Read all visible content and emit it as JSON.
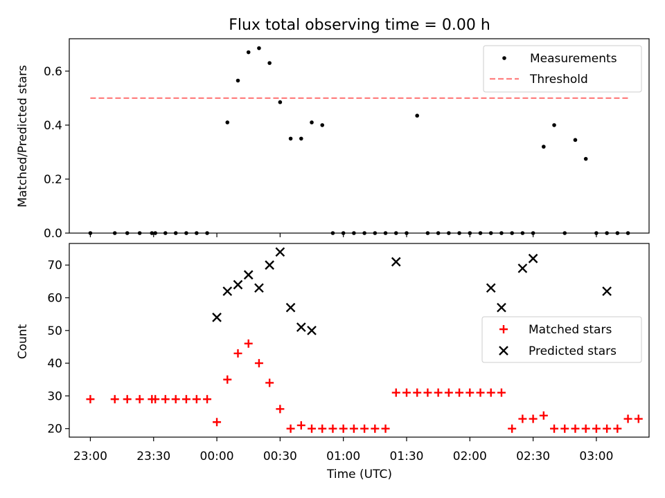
{
  "chart_data": [
    {
      "type": "scatter",
      "title": "Flux total observing time = 0.00 h",
      "xlabel": "",
      "ylabel": "Matched/Predicted stars",
      "ylim": [
        0,
        0.72
      ],
      "yticks": [
        "0.0",
        "0.2",
        "0.4",
        "0.6"
      ],
      "xlim_minutes": [
        -10,
        265
      ],
      "threshold": {
        "name": "Threshold",
        "value": 0.5,
        "x_range_minutes": [
          0,
          255
        ],
        "color": "#ff7f7f"
      },
      "series": [
        {
          "name": "Measurements",
          "color": "#000000",
          "x_minutes": [
            0,
            11.6,
            17.5,
            23.4,
            29.2,
            30.8,
            35.6,
            40.5,
            45.5,
            50.4,
            55.4,
            65,
            70,
            75,
            80,
            85,
            90,
            95,
            100,
            105,
            110,
            115,
            120,
            125,
            130,
            135,
            140,
            145,
            150,
            155,
            160,
            165,
            170,
            175,
            180,
            185,
            190,
            195,
            200,
            205,
            210,
            215,
            220,
            225,
            230,
            235,
            240,
            245,
            250,
            255
          ],
          "values": [
            0,
            0,
            0,
            0,
            0,
            0,
            0,
            0,
            0,
            0,
            0,
            0.41,
            0.565,
            0.67,
            0.685,
            0.63,
            0.485,
            0.35,
            0.35,
            0.41,
            0.4,
            0,
            0,
            0,
            0,
            0,
            0,
            0,
            0,
            0.435,
            0,
            0,
            0,
            0,
            0,
            0,
            0,
            0,
            0,
            0,
            0,
            0.32,
            0.4,
            0,
            0.345,
            0.275,
            0,
            0,
            0,
            0
          ]
        }
      ]
    },
    {
      "type": "scatter",
      "title": "",
      "xlabel": "Time (UTC)",
      "ylabel": "Count",
      "ylim": [
        17.4,
        76.6
      ],
      "yticks": [
        "20",
        "30",
        "40",
        "50",
        "60",
        "70"
      ],
      "xticks": [
        "23:00",
        "23:30",
        "00:00",
        "00:30",
        "01:00",
        "01:30",
        "02:00",
        "02:30",
        "03:00"
      ],
      "series": [
        {
          "name": "Matched stars",
          "color": "#ff0000",
          "marker": "+",
          "x_minutes": [
            0,
            11.6,
            17.5,
            23.4,
            29.2,
            30.8,
            35.6,
            40.5,
            45.5,
            50.4,
            55.4,
            60,
            65,
            70,
            75,
            80,
            85,
            90,
            95,
            100,
            105,
            110,
            115,
            120,
            125,
            130,
            135,
            140,
            145,
            150,
            155,
            160,
            165,
            170,
            175,
            180,
            185,
            190,
            195,
            200,
            205,
            210,
            215,
            220,
            225,
            230,
            235,
            240,
            245,
            250,
            255,
            260
          ],
          "values": [
            29,
            29,
            29,
            29,
            29,
            29,
            29,
            29,
            29,
            29,
            29,
            22,
            35,
            43,
            46,
            40,
            34,
            26,
            20,
            21,
            20,
            20,
            20,
            20,
            20,
            20,
            20,
            20,
            31,
            31,
            31,
            31,
            31,
            31,
            31,
            31,
            31,
            31,
            31,
            20,
            23,
            23,
            24,
            20,
            20,
            20,
            20,
            20,
            20,
            20,
            23,
            23
          ]
        },
        {
          "name": "Predicted stars",
          "color": "#000000",
          "marker": "x",
          "x_minutes": [
            60,
            65,
            70,
            75,
            80,
            85,
            90,
            95,
            100,
            105,
            145,
            190,
            195,
            205,
            210,
            245
          ],
          "values": [
            54,
            62,
            64,
            67,
            63,
            70,
            74,
            57,
            51,
            50,
            71,
            63,
            57,
            69,
            72,
            62
          ]
        }
      ]
    }
  ]
}
